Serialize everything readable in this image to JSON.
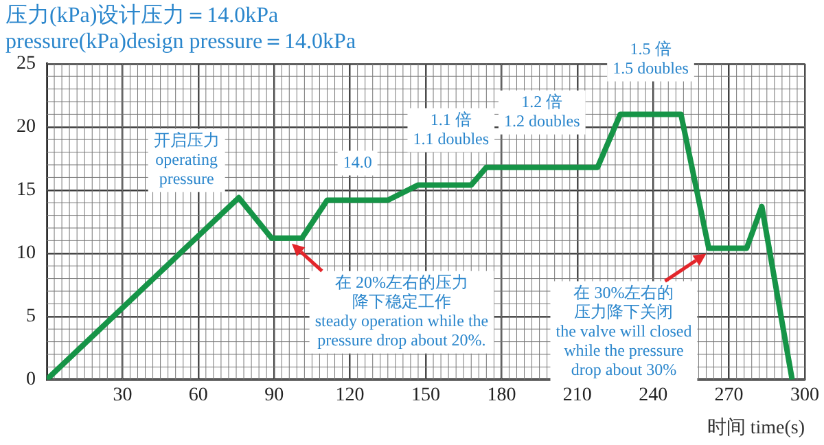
{
  "chart_data": {
    "type": "line",
    "title": "压力(kPa)设计压力＝14.0kPa",
    "subtitle": "pressure(kPa)design pressure＝14.0kPa",
    "xlabel": "时间 time(s)",
    "x": [
      0,
      76,
      89,
      101,
      111,
      135,
      147,
      168,
      174,
      218,
      227,
      251,
      262,
      277,
      283,
      295
    ],
    "series": [
      {
        "color": "#169447",
        "values": [
          0,
          14.4,
          11.2,
          11.2,
          14.2,
          14.2,
          15.4,
          15.4,
          16.8,
          16.8,
          21,
          21,
          10.4,
          10.4,
          13.7,
          0
        ]
      }
    ],
    "xlim": [
      0,
      300
    ],
    "xticks": [
      {
        "value": 0,
        "label": null
      },
      30,
      60,
      90,
      120,
      150,
      180,
      210,
      240,
      270,
      300
    ],
    "ylim": [
      0,
      25
    ],
    "yticks": [
      0,
      5,
      10,
      15,
      20,
      25
    ],
    "grid": true,
    "marker": "none",
    "line_style": "solid",
    "annotations": [
      {
        "text": "开启压力\noperating pressure",
        "x": 76,
        "y": 14.4
      },
      {
        "text": "14.0",
        "x": 123,
        "y": 14.2
      },
      {
        "text": "1.1 倍\n1.1 doubles",
        "x": 160,
        "y": 15.4
      },
      {
        "text": "1.2 倍\n1.2 doubles",
        "x": 196,
        "y": 16.8
      },
      {
        "text": "1.5 倍\n1.5 doubles",
        "x": 239,
        "y": 21
      },
      {
        "text": "在 20%左右的压力降下稳定工作\nsteady operation while the pressure drop about 20%.",
        "x": 97,
        "y": 11.2
      },
      {
        "text": "在 30%左右的压力降下关闭\nthe valve will closed while the pressure drop about 30%",
        "x": 261,
        "y": 10.4
      }
    ]
  }
}
